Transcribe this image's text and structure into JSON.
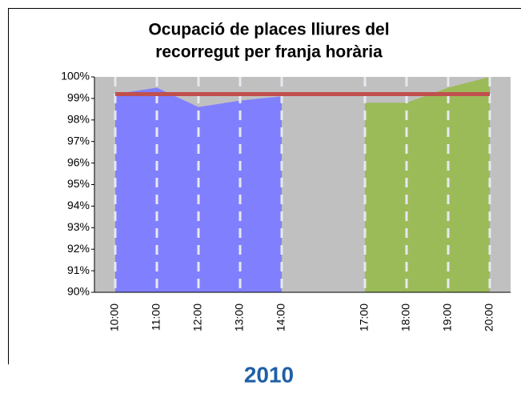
{
  "chart_data": {
    "type": "area",
    "title": [
      "Ocupació de places lliures del",
      "recorregut per franja horària"
    ],
    "categories": [
      "10:00",
      "11:00",
      "12:00",
      "13:00",
      "14:00",
      null,
      "17:00",
      "18:00",
      "19:00",
      "20:00"
    ],
    "series": [
      {
        "color": "#8080ff",
        "values": [
          99.2,
          99.5,
          98.6,
          98.9,
          99.1,
          null,
          null,
          null,
          null,
          null
        ]
      },
      {
        "color": "#9bbb59",
        "values": [
          null,
          null,
          null,
          null,
          null,
          null,
          98.8,
          98.8,
          99.5,
          100
        ]
      },
      {
        "type": "line",
        "color": "#c0504d",
        "values": [
          99.2,
          99.2,
          99.2,
          99.2,
          99.2,
          99.2,
          99.2,
          99.2,
          99.2,
          99.2
        ]
      }
    ],
    "ylim": [
      90,
      100
    ],
    "yticks": [
      {
        "value": 90,
        "label": "90%"
      },
      {
        "value": 91,
        "label": "91%"
      },
      {
        "value": 92,
        "label": "92%"
      },
      {
        "value": 93,
        "label": "93%"
      },
      {
        "value": 94,
        "label": "94%"
      },
      {
        "value": 95,
        "label": "95%"
      },
      {
        "value": 96,
        "label": "96%"
      },
      {
        "value": 97,
        "label": "97%"
      },
      {
        "value": 98,
        "label": "98%"
      },
      {
        "value": 99,
        "label": "99%"
      },
      {
        "value": 100,
        "label": "100%"
      }
    ],
    "plot_background": "#c0c0c0"
  },
  "caption": "2010"
}
